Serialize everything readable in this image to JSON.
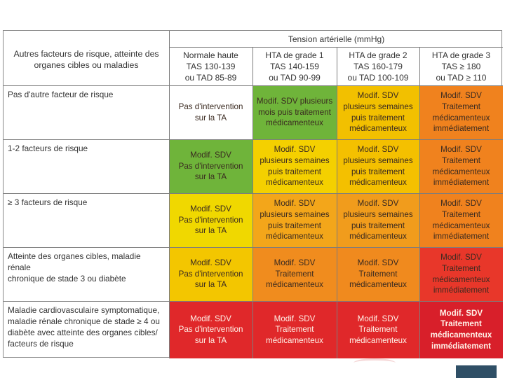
{
  "table": {
    "main_header": "Tension artérielle (mmHg)",
    "risk_header": [
      "Autres facteurs de risque, atteinte des",
      "organes cibles ou maladies"
    ],
    "columns": [
      {
        "lines": [
          "Normale haute",
          "TAS 130-139",
          "ou TAD 85-89"
        ]
      },
      {
        "lines": [
          "HTA de grade 1",
          "TAS 140-159",
          "ou TAD 90-99"
        ]
      },
      {
        "lines": [
          "HTA de grade 2",
          "TAS 160-179",
          "ou TAD 100-109"
        ]
      },
      {
        "lines": [
          "HTA de grade 3",
          "TAS ≥ 180",
          "ou TAD ≥ 110"
        ]
      }
    ],
    "rows": [
      {
        "label": [
          "Pas d'autre facteur de risque"
        ],
        "cells": [
          {
            "lines": [
              "Pas d'intervention",
              "sur la TA"
            ],
            "color": "#ffffff",
            "bold": false
          },
          {
            "lines": [
              "Modif. SDV plusieurs",
              "mois puis traitement",
              "médicamenteux"
            ],
            "color": "#6fb43a",
            "bold": false
          },
          {
            "lines": [
              "Modif. SDV",
              "plusieurs semaines",
              "puis traitement",
              "médicamenteux"
            ],
            "color": "#f2c000",
            "bold": false
          },
          {
            "lines": [
              "Modif. SDV",
              "Traitement",
              "médicamenteux",
              "immédiatement"
            ],
            "color": "#f0821e",
            "bold": false
          }
        ]
      },
      {
        "label": [
          "1-2 facteurs de risque"
        ],
        "cells": [
          {
            "lines": [
              "Modif. SDV",
              "Pas d'intervention",
              "sur la TA"
            ],
            "color": "#6fb43a",
            "bold": false
          },
          {
            "lines": [
              "Modif. SDV",
              "plusieurs semaines",
              "puis traitement",
              "médicamenteux"
            ],
            "color": "#f4d000",
            "bold": false
          },
          {
            "lines": [
              "Modif. SDV",
              "plusieurs semaines",
              "puis traitement",
              "médicamenteux"
            ],
            "color": "#f4c000",
            "bold": false
          },
          {
            "lines": [
              "Modif. SDV",
              "Traitement",
              "médicamenteux",
              "immédiatement"
            ],
            "color": "#f0821e",
            "bold": false
          }
        ]
      },
      {
        "label": [
          "≥ 3 facteurs de risque"
        ],
        "cells": [
          {
            "lines": [
              "Modif. SDV",
              "Pas d'intervention",
              "sur la TA"
            ],
            "color": "#f0d800",
            "bold": false
          },
          {
            "lines": [
              "Modif. SDV",
              "plusieurs semaines",
              "puis traitement",
              "médicamenteux"
            ],
            "color": "#f3a61a",
            "bold": false
          },
          {
            "lines": [
              "Modif. SDV",
              "plusieurs semaines",
              "puis traitement",
              "médicamenteux"
            ],
            "color": "#f19c1c",
            "bold": false
          },
          {
            "lines": [
              "Modif. SDV",
              "Traitement",
              "médicamenteux",
              "immédiatement"
            ],
            "color": "#f0821e",
            "bold": false
          }
        ]
      },
      {
        "label": [
          "Atteinte des organes cibles, maladie rénale",
          "chronique de stade 3 ou diabète"
        ],
        "cells": [
          {
            "lines": [
              "Modif. SDV",
              "Pas d'intervention",
              "sur la TA"
            ],
            "color": "#f3c600",
            "bold": false
          },
          {
            "lines": [
              "Modif. SDV",
              "Traitement",
              "médicamenteux"
            ],
            "color": "#f08c1e",
            "bold": false
          },
          {
            "lines": [
              "Modif. SDV",
              "Traitement",
              "médicamenteux"
            ],
            "color": "#f08a1e",
            "bold": false
          },
          {
            "lines": [
              "Modif. SDV",
              "Traitement",
              "médicamenteux",
              "immédiatement"
            ],
            "color": "#e8372a",
            "bold": false
          }
        ]
      },
      {
        "label": [
          "Maladie cardiovasculaire symptomatique,",
          "maladie rénale chronique de stade ≥ 4 ou",
          "diabète avec atteinte des organes cibles/",
          "facteurs de risque"
        ],
        "cells": [
          {
            "lines": [
              "Modif. SDV",
              "Pas d'intervention",
              "sur la TA"
            ],
            "color": "#e0282a",
            "bold": false
          },
          {
            "lines": [
              "Modif. SDV",
              "Traitement",
              "médicamenteux"
            ],
            "color": "#e0282a",
            "bold": false
          },
          {
            "lines": [
              "Modif. SDV",
              "Traitement",
              "médicamenteux"
            ],
            "color": "#e0282a",
            "bold": false
          },
          {
            "lines": [
              "Modif. SDV",
              "Traitement",
              "médicamenteux",
              "immédiatement"
            ],
            "color": "#d81f2a",
            "bold": true
          }
        ]
      }
    ]
  }
}
